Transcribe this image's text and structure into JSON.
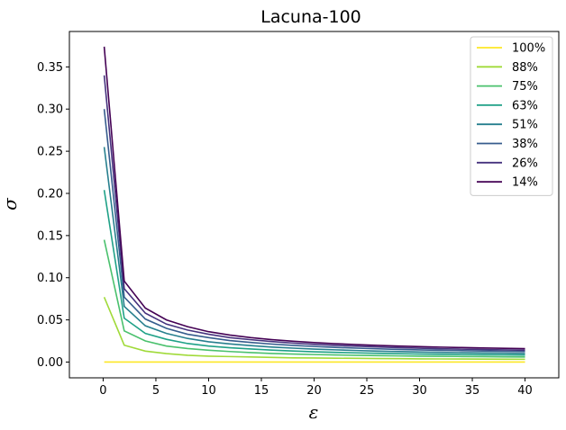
{
  "chart_data": {
    "type": "line",
    "title": "Lacuna-100",
    "xlabel": "ε",
    "ylabel": "σ",
    "xlim": [
      -3.2,
      43.2
    ],
    "ylim": [
      -0.0187,
      0.392
    ],
    "xticks": [
      0,
      5,
      10,
      15,
      20,
      25,
      30,
      35,
      40
    ],
    "xtick_labels": [
      "0",
      "5",
      "10",
      "15",
      "20",
      "25",
      "30",
      "35",
      "40"
    ],
    "yticks": [
      0.0,
      0.05,
      0.1,
      0.15,
      0.2,
      0.25,
      0.3,
      0.35
    ],
    "ytick_labels": [
      "0.00",
      "0.05",
      "0.10",
      "0.15",
      "0.20",
      "0.25",
      "0.30",
      "0.35"
    ],
    "grid": false,
    "legend_position": "top-right",
    "x": [
      0.1,
      2,
      4,
      6,
      8,
      10,
      12,
      14,
      16,
      18,
      20,
      22,
      24,
      26,
      28,
      30,
      32,
      34,
      36,
      38,
      40
    ],
    "series": [
      {
        "name": "100%",
        "color": "#fde725",
        "values": [
          0.0,
          0.0,
          0.0,
          0.0,
          0.0,
          0.0,
          0.0,
          0.0,
          0.0,
          0.0,
          0.0,
          0.0,
          0.0,
          0.0,
          0.0,
          0.0,
          0.0,
          0.0,
          0.0,
          0.0,
          0.0
        ]
      },
      {
        "name": "88%",
        "color": "#a0da39",
        "values": [
          0.077,
          0.02,
          0.013,
          0.01,
          0.008,
          0.007,
          0.0065,
          0.006,
          0.0055,
          0.005,
          0.0048,
          0.0046,
          0.0044,
          0.0042,
          0.004,
          0.0038,
          0.0037,
          0.0036,
          0.0035,
          0.0034,
          0.0033
        ]
      },
      {
        "name": "75%",
        "color": "#4ac16d",
        "values": [
          0.145,
          0.037,
          0.025,
          0.019,
          0.016,
          0.014,
          0.0125,
          0.0112,
          0.0102,
          0.0095,
          0.0089,
          0.0084,
          0.008,
          0.0076,
          0.0073,
          0.007,
          0.0068,
          0.0066,
          0.0064,
          0.0062,
          0.006
        ]
      },
      {
        "name": "63%",
        "color": "#1fa187",
        "values": [
          0.204,
          0.052,
          0.034,
          0.027,
          0.022,
          0.019,
          0.017,
          0.0155,
          0.0142,
          0.0131,
          0.0122,
          0.0115,
          0.0109,
          0.0104,
          0.0099,
          0.0095,
          0.0092,
          0.0089,
          0.0087,
          0.0085,
          0.0083
        ]
      },
      {
        "name": "51%",
        "color": "#277f8e",
        "values": [
          0.255,
          0.066,
          0.043,
          0.034,
          0.028,
          0.024,
          0.0215,
          0.0195,
          0.0178,
          0.0165,
          0.0154,
          0.0145,
          0.0137,
          0.013,
          0.0124,
          0.0119,
          0.0115,
          0.0111,
          0.0108,
          0.0105,
          0.0102
        ]
      },
      {
        "name": "38%",
        "color": "#365c8d",
        "values": [
          0.3,
          0.077,
          0.051,
          0.04,
          0.033,
          0.029,
          0.0255,
          0.0232,
          0.0213,
          0.0198,
          0.0185,
          0.0174,
          0.0165,
          0.0157,
          0.015,
          0.0144,
          0.0139,
          0.0135,
          0.0131,
          0.0127,
          0.0124
        ]
      },
      {
        "name": "26%",
        "color": "#46327e",
        "values": [
          0.34,
          0.087,
          0.058,
          0.045,
          0.038,
          0.033,
          0.029,
          0.0265,
          0.0243,
          0.0225,
          0.021,
          0.0198,
          0.0188,
          0.0179,
          0.0171,
          0.0164,
          0.0158,
          0.0153,
          0.0148,
          0.0144,
          0.014
        ]
      },
      {
        "name": "14%",
        "color": "#440154",
        "values": [
          0.374,
          0.096,
          0.064,
          0.05,
          0.042,
          0.036,
          0.032,
          0.029,
          0.0266,
          0.0247,
          0.0231,
          0.0218,
          0.0207,
          0.0198,
          0.019,
          0.0183,
          0.0177,
          0.0172,
          0.0167,
          0.0163,
          0.0159
        ]
      }
    ]
  }
}
